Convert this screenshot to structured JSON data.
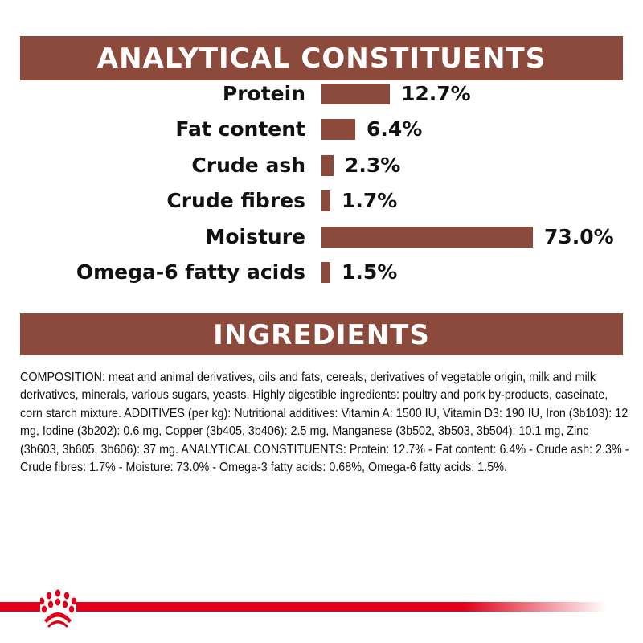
{
  "header": {
    "title": "ANALYTICAL CONSTITUENTS"
  },
  "chart_data": {
    "type": "bar",
    "orientation": "horizontal",
    "categories": [
      "Protein",
      "Fat content",
      "Crude ash",
      "Crude fibres",
      "Moisture",
      "Omega-6 fatty acids"
    ],
    "values": [
      12.7,
      6.4,
      2.3,
      1.7,
      73.0,
      1.5
    ],
    "data_labels": [
      "12.7%",
      "6.4%",
      "2.3%",
      "1.7%",
      "73.0%",
      "1.5%"
    ],
    "title": "ANALYTICAL CONSTITUENTS",
    "bar_color": "#8c4a3c",
    "grid": false
  },
  "ingredients": {
    "title": "INGREDIENTS",
    "text": "COMPOSITION: meat and animal derivatives, oils and fats, cereals, derivatives of vegetable origin, milk and milk derivatives, minerals, various sugars, yeasts. Highly digestible ingredients: poultry and pork by-products, caseinate, corn starch mixture. ADDITIVES (per kg): Nutritional additives: Vitamin A: 1500 IU, Vitamin D3: 190 IU, Iron (3b103): 12 mg, Iodine (3b202): 0.6 mg, Copper (3b405, 3b406): 2.5 mg, Manganese (3b502, 3b503, 3b504): 10.1 mg, Zinc (3b603, 3b605, 3b606): 37 mg. ANALYTICAL CONSTITUENTS: Protein: 12.7% - Fat content: 6.4% - Crude ash: 2.3% - Crude fibres: 1.7% - Moisture: 73.0% - Omega-3 fatty acids: 0.68%, Omega-6 fatty acids: 1.5%."
  },
  "footer": {
    "logo": "royal-canin-crown-logo",
    "accent": "#e2001a"
  }
}
